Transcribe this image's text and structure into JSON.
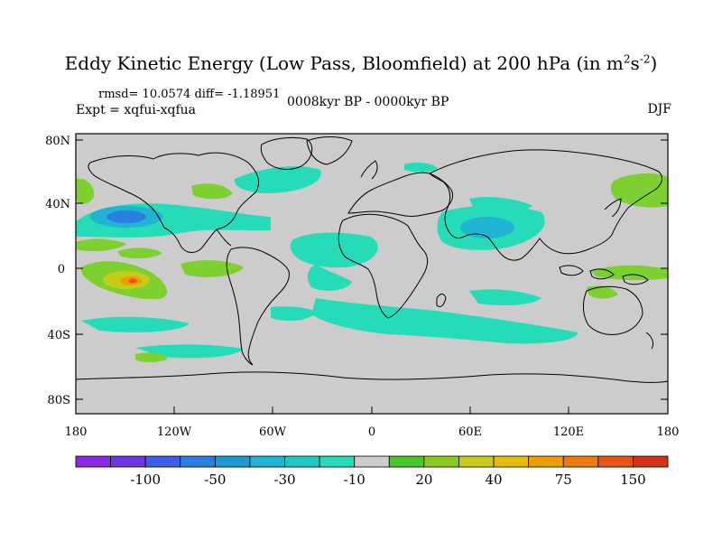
{
  "title": {
    "text_main": "Eddy Kinetic Energy (Low Pass, Bloomfield) at 200 hPa (in m",
    "sup1": "2",
    "mid": "s",
    "sup2": "-2",
    "end": ")"
  },
  "subtitle": {
    "stats": "rmsd= 10.0574 diff= -1.18951",
    "expt": "Expt = xqfui-xqfua",
    "period": "0008kyr BP - 0000kyr BP",
    "season": "DJF"
  },
  "axes": {
    "lat_ticks": [
      "80N",
      "40N",
      "0",
      "40S",
      "80S"
    ],
    "lon_ticks": [
      "180",
      "120W",
      "60W",
      "0",
      "60E",
      "120E",
      "180"
    ]
  },
  "colorbar": {
    "colors": [
      "#8a2be2",
      "#6a38e0",
      "#3e5ee8",
      "#2b7fe0",
      "#1f98d6",
      "#1fb4d2",
      "#1ec9c4",
      "#26dcb8",
      "#cccccc",
      "#4ac52c",
      "#8acb20",
      "#c4cc16",
      "#e6bb0a",
      "#ee9c08",
      "#ec7a10",
      "#e65515",
      "#d83018"
    ],
    "labels": [
      "-100",
      "-50",
      "-30",
      "-10",
      "20",
      "40",
      "75",
      "150"
    ]
  },
  "map": {
    "land_color": "#cccccc",
    "anomaly_colors": {
      "strong_neg": "#2b7fe0",
      "mid_neg": "#1fb4d2",
      "weak_neg": "#26dcb8",
      "weak_pos": "#7dd030",
      "mid_pos": "#c4cc16",
      "strong_pos": "#ee9c08",
      "peak_pos": "#e65515"
    }
  }
}
